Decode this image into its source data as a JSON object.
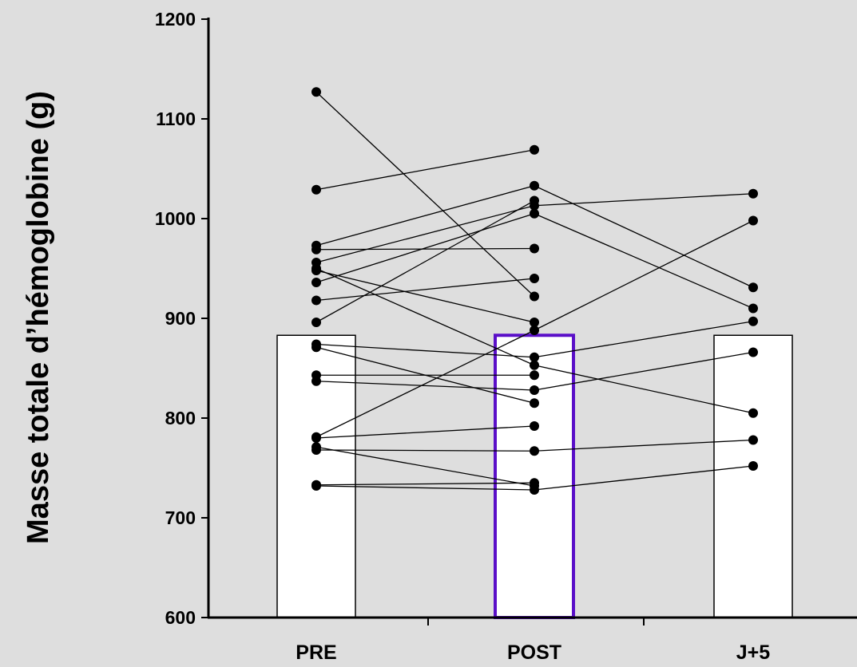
{
  "chart_data": {
    "type": "bar",
    "categories": [
      "PRE",
      "POST",
      "J+5"
    ],
    "values": [
      883,
      883,
      883
    ],
    "ylabel": "Masse totale d’hémoglobine (g)",
    "xlabel": "",
    "ylim": [
      600,
      1200
    ],
    "yticks": [
      600,
      700,
      800,
      900,
      1000,
      1100,
      1200
    ],
    "grid": false,
    "highlighted_category": "POST",
    "colors": {
      "background": "#dedede",
      "bar_fill": "#ffffff",
      "bar_stroke": "#000000",
      "highlight_stroke": "#5a0fc8",
      "points": "#000000",
      "lines": "#000000"
    },
    "individual_points": {
      "PRE": [
        1127,
        1029,
        973,
        969,
        956,
        950,
        948,
        936,
        918,
        896,
        874,
        871,
        843,
        837,
        781,
        780,
        771,
        768,
        733,
        732
      ],
      "POST": [
        1069,
        1033,
        1018,
        1013,
        1005,
        970,
        940,
        922,
        896,
        888,
        861,
        853,
        843,
        828,
        815,
        792,
        767,
        735,
        732,
        728
      ],
      "J+5": [
        1025,
        998,
        931,
        910,
        897,
        866,
        805,
        778,
        752
      ]
    },
    "paired_lines": [
      {
        "from": [
          "PRE",
          1127
        ],
        "to": [
          "POST",
          922
        ]
      },
      {
        "from": [
          "PRE",
          1029
        ],
        "to": [
          "POST",
          1069
        ]
      },
      {
        "from": [
          "PRE",
          973
        ],
        "to": [
          "POST",
          1033
        ]
      },
      {
        "from": [
          "PRE",
          969
        ],
        "to": [
          "POST",
          970
        ]
      },
      {
        "from": [
          "PRE",
          956
        ],
        "to": [
          "POST",
          1013
        ]
      },
      {
        "from": [
          "PRE",
          950
        ],
        "to": [
          "POST",
          853
        ]
      },
      {
        "from": [
          "PRE",
          948
        ],
        "to": [
          "POST",
          896
        ]
      },
      {
        "from": [
          "PRE",
          936
        ],
        "to": [
          "POST",
          1005
        ]
      },
      {
        "from": [
          "PRE",
          918
        ],
        "to": [
          "POST",
          940
        ]
      },
      {
        "from": [
          "PRE",
          896
        ],
        "to": [
          "POST",
          1018
        ]
      },
      {
        "from": [
          "PRE",
          874
        ],
        "to": [
          "POST",
          861
        ]
      },
      {
        "from": [
          "PRE",
          871
        ],
        "to": [
          "POST",
          815
        ]
      },
      {
        "from": [
          "PRE",
          843
        ],
        "to": [
          "POST",
          843
        ]
      },
      {
        "from": [
          "PRE",
          837
        ],
        "to": [
          "POST",
          828
        ]
      },
      {
        "from": [
          "PRE",
          781
        ],
        "to": [
          "POST",
          888
        ]
      },
      {
        "from": [
          "PRE",
          780
        ],
        "to": [
          "POST",
          792
        ]
      },
      {
        "from": [
          "PRE",
          771
        ],
        "to": [
          "POST",
          732
        ]
      },
      {
        "from": [
          "PRE",
          768
        ],
        "to": [
          "POST",
          767
        ]
      },
      {
        "from": [
          "PRE",
          733
        ],
        "to": [
          "POST",
          735
        ]
      },
      {
        "from": [
          "PRE",
          732
        ],
        "to": [
          "POST",
          728
        ]
      },
      {
        "from": [
          "POST",
          1013
        ],
        "to": [
          "J+5",
          1025
        ]
      },
      {
        "from": [
          "POST",
          1033
        ],
        "to": [
          "J+5",
          931
        ]
      },
      {
        "from": [
          "POST",
          1005
        ],
        "to": [
          "J+5",
          910
        ]
      },
      {
        "from": [
          "POST",
          888
        ],
        "to": [
          "J+5",
          998
        ]
      },
      {
        "from": [
          "POST",
          861
        ],
        "to": [
          "J+5",
          897
        ]
      },
      {
        "from": [
          "POST",
          828
        ],
        "to": [
          "J+5",
          866
        ]
      },
      {
        "from": [
          "POST",
          853
        ],
        "to": [
          "J+5",
          805
        ]
      },
      {
        "from": [
          "POST",
          767
        ],
        "to": [
          "J+5",
          778
        ]
      },
      {
        "from": [
          "POST",
          728
        ],
        "to": [
          "J+5",
          752
        ]
      }
    ]
  }
}
